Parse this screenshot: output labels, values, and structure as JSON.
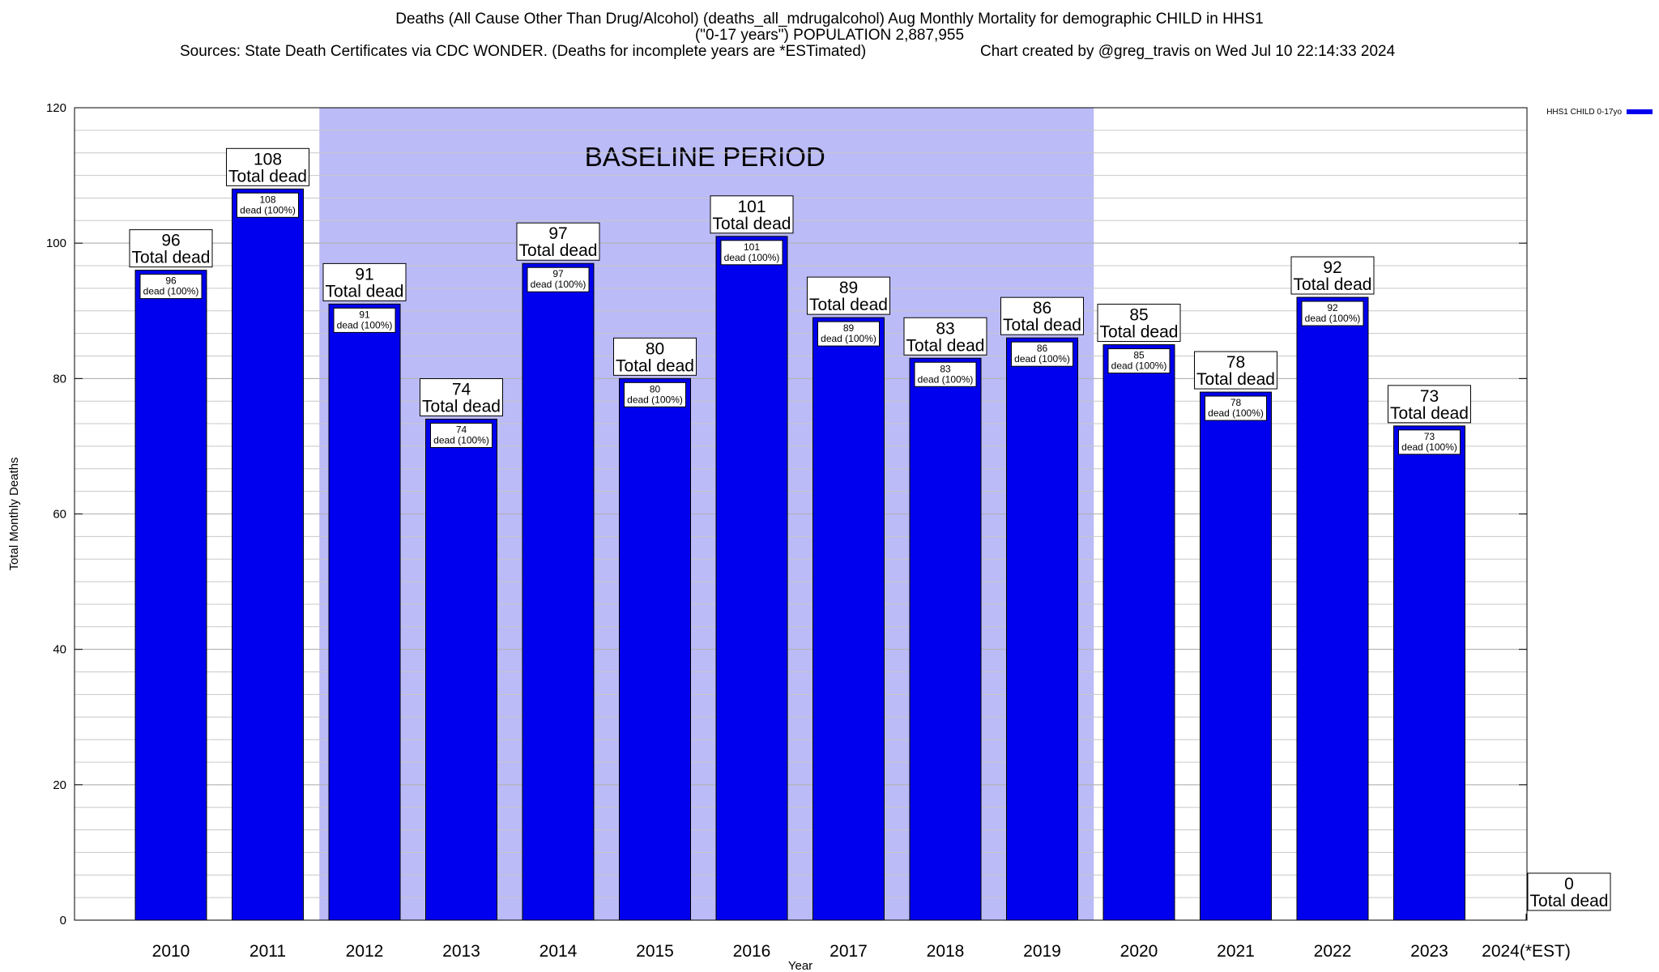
{
  "chart_title": {
    "line1": "Deaths (All Cause Other Than Drug/Alcohol) (deaths_all_mdrugalcohol) Aug Monthly Mortality for demographic CHILD in HHS1",
    "line2": "(\"0-17 years\") POPULATION 2,887,955",
    "sources": "Sources: State Death Certificates via CDC WONDER. (Deaths for incomplete years are *ESTimated)",
    "credit": "Chart created by @greg_travis on Wed Jul 10 22:14:33 2024"
  },
  "chart_data": {
    "type": "bar",
    "categories": [
      "2010",
      "2011",
      "2012",
      "2013",
      "2014",
      "2015",
      "2016",
      "2017",
      "2018",
      "2019",
      "2020",
      "2021",
      "2022",
      "2023",
      "2024(*EST)"
    ],
    "series": [
      {
        "name": "HHS1 CHILD 0-17yo",
        "values": [
          96,
          108,
          91,
          74,
          97,
          80,
          101,
          89,
          83,
          86,
          85,
          78,
          92,
          73,
          0
        ]
      }
    ],
    "xlabel": "Year",
    "ylabel": "Total Monthly Deaths",
    "ylim": [
      0,
      120
    ],
    "yticks": [
      0,
      20,
      40,
      60,
      80,
      100,
      120
    ],
    "grid": true,
    "legend_position": "top-right",
    "bar_color": "#0000ee",
    "shade_color": "#bbbbf8",
    "baseline_period": {
      "label": "BASELINE PERIOD",
      "from": "2012",
      "to": "2019"
    },
    "annotation_total_label": "Total dead",
    "annotation_inner_label": "dead (100%)"
  }
}
